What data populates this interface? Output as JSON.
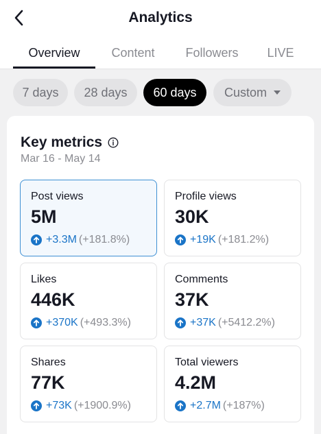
{
  "header": {
    "title": "Analytics"
  },
  "tabs": [
    {
      "label": "Overview",
      "active": true
    },
    {
      "label": "Content",
      "active": false
    },
    {
      "label": "Followers",
      "active": false
    },
    {
      "label": "LIVE",
      "active": false
    }
  ],
  "filters": [
    {
      "label": "7 days",
      "active": false
    },
    {
      "label": "28 days",
      "active": false
    },
    {
      "label": "60 days",
      "active": true
    },
    {
      "label": "Custom",
      "active": false
    }
  ],
  "key_metrics": {
    "title": "Key metrics",
    "date_range": "Mar 16 - May 14",
    "items": [
      {
        "label": "Post views",
        "value": "5M",
        "delta": "+3.3M",
        "pct": "(+181.8%)",
        "selected": true
      },
      {
        "label": "Profile views",
        "value": "30K",
        "delta": "+19K",
        "pct": "(+181.2%)",
        "selected": false
      },
      {
        "label": "Likes",
        "value": "446K",
        "delta": "+370K",
        "pct": "(+493.3%)",
        "selected": false
      },
      {
        "label": "Comments",
        "value": "37K",
        "delta": "+37K",
        "pct": "(+5412.2%)",
        "selected": false
      },
      {
        "label": "Shares",
        "value": "77K",
        "delta": "+73K",
        "pct": "(+1900.9%)",
        "selected": false
      },
      {
        "label": "Total viewers",
        "value": "4.2M",
        "delta": "+2.7M",
        "pct": "(+187%)",
        "selected": false
      }
    ]
  },
  "colors": {
    "accent": "#1a74c7",
    "selected_bg": "#f3f8fd",
    "selected_border": "#3d8fd3"
  },
  "icons": {
    "back": "chevron-left-icon",
    "info": "info-circle-icon",
    "trend": "arrow-up-circle-icon",
    "dropdown": "caret-down-icon"
  }
}
